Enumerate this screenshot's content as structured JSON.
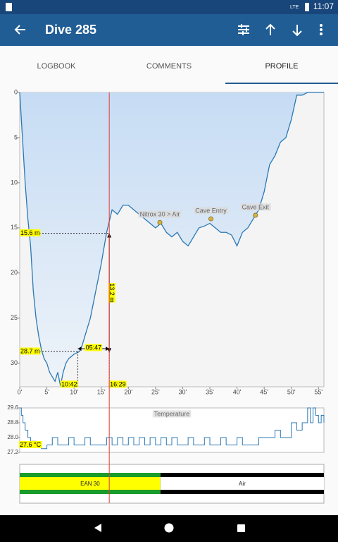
{
  "status_bar": {
    "time": "11:07",
    "network": "LTE"
  },
  "app_bar": {
    "title": "Dive 285"
  },
  "tabs": {
    "items": [
      "LOGBOOK",
      "COMMENTS",
      "PROFILE"
    ],
    "active": 2
  },
  "profile_chart": {
    "xlim": [
      0,
      56
    ],
    "ylim": [
      0,
      32.6
    ],
    "xticks": [
      {
        "value": 0,
        "label": "0'"
      },
      {
        "value": 5,
        "label": "5'"
      },
      {
        "value": 10,
        "label": "10'"
      },
      {
        "value": 15,
        "label": "15'"
      },
      {
        "value": 20,
        "label": "20'"
      },
      {
        "value": 25,
        "label": "25'"
      },
      {
        "value": 30,
        "label": "30'"
      },
      {
        "value": 35,
        "label": "35'"
      },
      {
        "value": 40,
        "label": "40'"
      },
      {
        "value": 45,
        "label": "45'"
      },
      {
        "value": 50,
        "label": "50'"
      },
      {
        "value": 55,
        "label": "55'"
      }
    ],
    "yticks": [
      0,
      5,
      10,
      15,
      20,
      25,
      30
    ],
    "color": "#2a78b4",
    "x": [
      0,
      0.5,
      1,
      1.5,
      2,
      2.5,
      3,
      3.5,
      4,
      4.5,
      5,
      5.5,
      6,
      6.5,
      7,
      7.5,
      8,
      8.5,
      9,
      10,
      11,
      11.5,
      12,
      13,
      14,
      15,
      16,
      17,
      18,
      19,
      20,
      21,
      22,
      23,
      24,
      25,
      26,
      27,
      28,
      29,
      30,
      31,
      32,
      33,
      34,
      35,
      36,
      37,
      38,
      39,
      40,
      41,
      42,
      43,
      44,
      45,
      46,
      47,
      48,
      49,
      50,
      51,
      52,
      53,
      54,
      55,
      56
    ],
    "values": [
      0,
      5,
      10,
      14,
      17,
      22,
      25,
      27,
      28.5,
      29.5,
      30,
      31,
      31.5,
      32,
      31,
      32.5,
      31,
      30,
      29.5,
      29,
      28.7,
      28,
      27,
      25,
      22,
      19,
      15.5,
      13,
      13.5,
      12.5,
      12.5,
      13,
      13.5,
      14,
      14.5,
      15,
      14.5,
      15.5,
      16,
      15.5,
      16.5,
      17,
      16,
      15,
      14.8,
      14.5,
      15,
      15.5,
      15.5,
      15.8,
      17,
      15.5,
      15,
      14,
      13,
      11,
      8,
      7,
      5.5,
      5,
      3,
      0.3,
      0.3,
      0,
      0,
      0,
      0
    ],
    "depth_markers": [
      {
        "value": 15.6,
        "label": "15.6 m"
      },
      {
        "value": 28.7,
        "label": "28.7 m"
      }
    ],
    "time_markers": [
      {
        "value": 10.7,
        "label": "10:42"
      },
      {
        "value": 16.483,
        "label": "16:29"
      }
    ],
    "duration": {
      "value": 5.783,
      "label": "05:47"
    },
    "depth_delta": {
      "value": 13.2,
      "label": "13.2 m"
    },
    "events": [
      {
        "label": "Nitrox 30 > Air",
        "time": 25.8,
        "depth": 14.4
      },
      {
        "label": "Cave Entry",
        "time": 35.2,
        "depth": 14
      },
      {
        "label": "Cave Exit",
        "time": 43.4,
        "depth": 13.6
      }
    ]
  },
  "temperature_chart": {
    "title": "Temperature",
    "xlim": [
      0,
      56
    ],
    "ylim": [
      27.2,
      29.6
    ],
    "yticks": [
      29.6,
      28.8,
      {
        "value": 28,
        "label": "28.0"
      },
      27.2
    ],
    "color": "#2a78b4",
    "x": [
      0,
      0.3,
      0.6,
      1,
      1.5,
      2,
      3,
      4,
      5,
      6,
      7,
      8,
      9,
      10,
      11,
      12,
      13,
      14,
      15,
      16,
      17,
      18,
      19,
      20,
      21,
      22,
      23,
      24,
      25,
      26,
      27,
      28,
      29,
      30,
      31,
      32,
      33,
      34,
      35,
      36,
      37,
      38,
      39,
      40,
      41,
      42,
      43,
      44,
      45,
      46,
      47,
      48,
      49,
      50,
      51,
      52,
      53,
      53.5,
      54,
      54.5,
      55,
      55.5,
      56
    ],
    "values": [
      29.6,
      29.2,
      28.8,
      28.4,
      28,
      27.8,
      27.6,
      27.4,
      27.6,
      28,
      27.6,
      27.6,
      28,
      27.6,
      27.6,
      28,
      27.6,
      27.6,
      27.6,
      28,
      27.6,
      28,
      27.6,
      28,
      27.6,
      28,
      27.6,
      28,
      27.6,
      28,
      27.6,
      28,
      27.6,
      27.6,
      28,
      27.6,
      27.6,
      28,
      27.6,
      27.6,
      28,
      27.6,
      27.6,
      28,
      27.6,
      27.6,
      27.6,
      28,
      28,
      28,
      28.4,
      28,
      28,
      28.8,
      28.4,
      28.8,
      29.6,
      28.8,
      29.6,
      29.2,
      28.8,
      29.2,
      28.8
    ],
    "marker": {
      "value": 27.6,
      "label": "27.6 °C"
    }
  },
  "gas_chart": {
    "segments": [
      {
        "name": "EAN 30",
        "start": 0,
        "end": 25.9,
        "color": "#ffff00",
        "stripe": "#1a9c2a"
      },
      {
        "name": "Air",
        "start": 25.9,
        "end": 56,
        "color": "#ffffff",
        "stripe": "#000000"
      }
    ]
  }
}
